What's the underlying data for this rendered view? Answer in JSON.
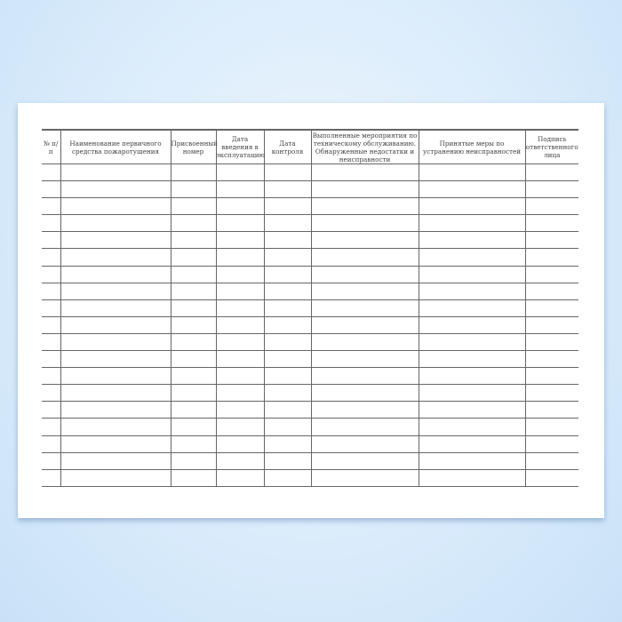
{
  "form": {
    "headers": [
      "№ п/п",
      "Наименование первичного средства пожаротушения",
      "Присвоенный номер",
      "Дата введения в эксплуатацию",
      "Дата контроля",
      "Выполненные мероприятия по техническому обслуживанию. Обнаруженные недостатки и неисправности",
      "Принятые меры по устранению неисправностей",
      "Подпись ответственного лица"
    ],
    "row_count": 19
  }
}
